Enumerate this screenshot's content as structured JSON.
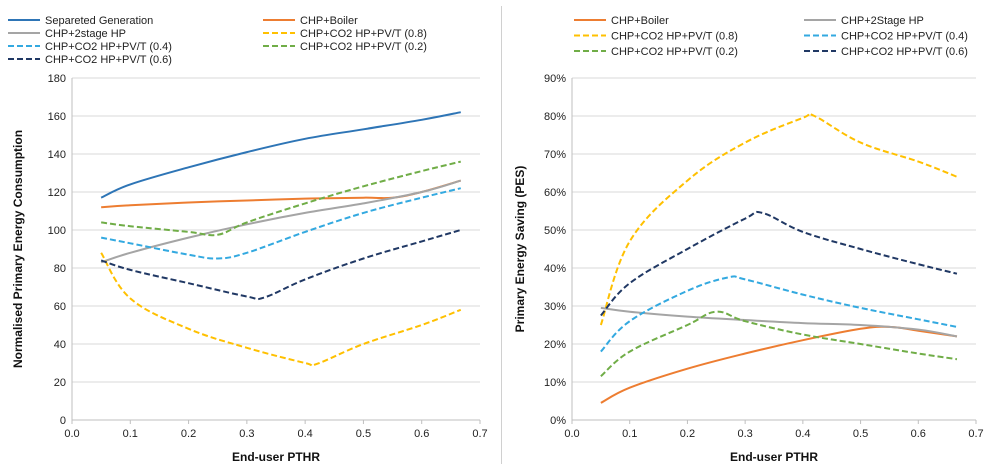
{
  "chart_data": [
    {
      "type": "line",
      "xlabel": "End-user PTHR",
      "ylabel": "Normalised Primary Energy Consumption",
      "xlim": [
        0.0,
        0.7
      ],
      "ylim": [
        0,
        180
      ],
      "x_ticks": [
        "0.0",
        "0.1",
        "0.2",
        "0.3",
        "0.4",
        "0.5",
        "0.6",
        "0.7"
      ],
      "y_ticks": [
        "0",
        "20",
        "40",
        "60",
        "80",
        "100",
        "120",
        "140",
        "160",
        "180"
      ],
      "grid": true,
      "legend": "top",
      "series": [
        {
          "name": "Separeted Generation",
          "color": "#2e75b6",
          "dash": "solid",
          "points": [
            [
              0.05,
              117
            ],
            [
              0.1,
              124
            ],
            [
              0.2,
              133
            ],
            [
              0.3,
              141
            ],
            [
              0.4,
              148
            ],
            [
              0.5,
              153
            ],
            [
              0.6,
              158
            ],
            [
              0.667,
              162
            ]
          ]
        },
        {
          "name": "CHP+Boiler",
          "color": "#ed7d31",
          "dash": "solid",
          "points": [
            [
              0.05,
              112
            ],
            [
              0.1,
              113
            ],
            [
              0.2,
              114.5
            ],
            [
              0.3,
              115.5
            ],
            [
              0.4,
              116.5
            ],
            [
              0.5,
              117
            ],
            [
              0.55,
              117
            ],
            [
              0.6,
              120
            ],
            [
              0.667,
              126
            ]
          ]
        },
        {
          "name": "CHP+2stage HP",
          "color": "#a5a5a5",
          "dash": "solid",
          "points": [
            [
              0.05,
              83
            ],
            [
              0.1,
              88
            ],
            [
              0.2,
              96
            ],
            [
              0.3,
              103
            ],
            [
              0.4,
              109
            ],
            [
              0.5,
              114
            ],
            [
              0.6,
              120
            ],
            [
              0.667,
              126
            ]
          ]
        },
        {
          "name": "CHP+CO2 HP+PV/T (0.8)",
          "color": "#ffc000",
          "dash": "dashed",
          "points": [
            [
              0.05,
              88
            ],
            [
              0.1,
              64
            ],
            [
              0.2,
              48
            ],
            [
              0.3,
              38
            ],
            [
              0.4,
              30
            ],
            [
              0.42,
              29.5
            ],
            [
              0.5,
              40
            ],
            [
              0.6,
              50
            ],
            [
              0.667,
              58
            ]
          ]
        },
        {
          "name": "CHP+CO2 HP+PV/T (0.4)",
          "color": "#33a9e0",
          "dash": "dashed",
          "points": [
            [
              0.05,
              96
            ],
            [
              0.1,
              93
            ],
            [
              0.2,
              87
            ],
            [
              0.25,
              85
            ],
            [
              0.3,
              88
            ],
            [
              0.4,
              99
            ],
            [
              0.5,
              109
            ],
            [
              0.6,
              117
            ],
            [
              0.667,
              122
            ]
          ]
        },
        {
          "name": "CHP+CO2 HP+PV/T (0.2)",
          "color": "#70ad47",
          "dash": "dashed",
          "points": [
            [
              0.05,
              104
            ],
            [
              0.1,
              102
            ],
            [
              0.2,
              99
            ],
            [
              0.25,
              97.5
            ],
            [
              0.3,
              104
            ],
            [
              0.4,
              114
            ],
            [
              0.5,
              123
            ],
            [
              0.6,
              131
            ],
            [
              0.667,
              136
            ]
          ]
        },
        {
          "name": "CHP+CO2 HP+PV/T (0.6)",
          "color": "#203864",
          "dash": "dashed",
          "points": [
            [
              0.05,
              84
            ],
            [
              0.1,
              79
            ],
            [
              0.2,
              72
            ],
            [
              0.3,
              65
            ],
            [
              0.33,
              64.5
            ],
            [
              0.4,
              74
            ],
            [
              0.5,
              85
            ],
            [
              0.6,
              94
            ],
            [
              0.667,
              100
            ]
          ]
        }
      ]
    },
    {
      "type": "line",
      "xlabel": "End-user PTHR",
      "ylabel": "Primary Energy Saving (PES)",
      "xlim": [
        0.0,
        0.7
      ],
      "ylim": [
        0,
        90
      ],
      "y_unit": "%",
      "x_ticks": [
        "0.0",
        "0.1",
        "0.2",
        "0.3",
        "0.4",
        "0.5",
        "0.6",
        "0.7"
      ],
      "y_ticks": [
        "0%",
        "10%",
        "20%",
        "30%",
        "40%",
        "50%",
        "60%",
        "70%",
        "80%",
        "90%"
      ],
      "grid": true,
      "legend": "top",
      "series": [
        {
          "name": "CHP+Boiler",
          "color": "#ed7d31",
          "dash": "solid",
          "points": [
            [
              0.05,
              4.5
            ],
            [
              0.1,
              8.5
            ],
            [
              0.2,
              13.5
            ],
            [
              0.3,
              17.5
            ],
            [
              0.4,
              21
            ],
            [
              0.5,
              24
            ],
            [
              0.55,
              24.5
            ],
            [
              0.6,
              23.5
            ],
            [
              0.667,
              22
            ]
          ]
        },
        {
          "name": "CHP+2Stage HP",
          "color": "#a5a5a5",
          "dash": "solid",
          "points": [
            [
              0.05,
              29.5
            ],
            [
              0.1,
              28.5
            ],
            [
              0.2,
              27.2
            ],
            [
              0.3,
              26.3
            ],
            [
              0.4,
              25.5
            ],
            [
              0.5,
              25
            ],
            [
              0.6,
              23.8
            ],
            [
              0.667,
              22
            ]
          ]
        },
        {
          "name": "CHP+CO2 HP+PV/T (0.8)",
          "color": "#ffc000",
          "dash": "dashed",
          "points": [
            [
              0.05,
              25
            ],
            [
              0.1,
              47
            ],
            [
              0.2,
              63
            ],
            [
              0.3,
              73
            ],
            [
              0.4,
              79.5
            ],
            [
              0.42,
              80
            ],
            [
              0.5,
              73
            ],
            [
              0.6,
              68
            ],
            [
              0.667,
              64
            ]
          ]
        },
        {
          "name": "CHP+CO2 HP+PV/T (0.4)",
          "color": "#33a9e0",
          "dash": "dashed",
          "points": [
            [
              0.05,
              18
            ],
            [
              0.1,
              26
            ],
            [
              0.2,
              34
            ],
            [
              0.27,
              37.5
            ],
            [
              0.3,
              37
            ],
            [
              0.4,
              33
            ],
            [
              0.5,
              29.5
            ],
            [
              0.6,
              26.5
            ],
            [
              0.667,
              24.5
            ]
          ]
        },
        {
          "name": "CHP+CO2 HP+PV/T (0.2)",
          "color": "#70ad47",
          "dash": "dashed",
          "points": [
            [
              0.05,
              11.5
            ],
            [
              0.1,
              18
            ],
            [
              0.2,
              25
            ],
            [
              0.25,
              28.5
            ],
            [
              0.3,
              26
            ],
            [
              0.4,
              22.5
            ],
            [
              0.5,
              20
            ],
            [
              0.6,
              17.5
            ],
            [
              0.667,
              16
            ]
          ]
        },
        {
          "name": "CHP+CO2 HP+PV/T (0.6)",
          "color": "#203864",
          "dash": "dashed",
          "points": [
            [
              0.05,
              27.5
            ],
            [
              0.1,
              36
            ],
            [
              0.2,
              45
            ],
            [
              0.3,
              53
            ],
            [
              0.33,
              54.5
            ],
            [
              0.4,
              49.5
            ],
            [
              0.5,
              45
            ],
            [
              0.6,
              41
            ],
            [
              0.667,
              38.5
            ]
          ]
        }
      ]
    }
  ]
}
